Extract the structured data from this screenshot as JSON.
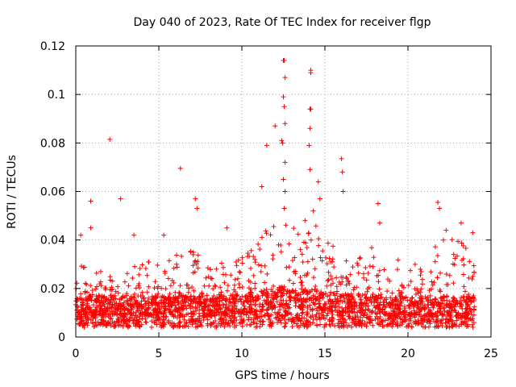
{
  "chart_data": {
    "type": "scatter",
    "title": "Day 040 of 2023, Rate Of TEC Index for receiver flgp",
    "xlabel": "GPS time / hours",
    "ylabel": "ROTI / TECUs",
    "xlim": [
      0,
      25
    ],
    "ylim": [
      0,
      0.12
    ],
    "xticks": [
      0,
      5,
      10,
      15,
      20,
      25
    ],
    "xtick_labels": [
      "0",
      "5",
      "10",
      "15",
      "20",
      "25"
    ],
    "yticks": [
      0,
      0.02,
      0.04,
      0.06,
      0.08,
      0.1,
      0.12
    ],
    "ytick_labels": [
      "0",
      "0.02",
      "0.04",
      "0.06",
      "0.08",
      "0.1",
      "0.12"
    ],
    "grid": true,
    "marker": "+",
    "marker_color": "#ff0000",
    "data_x_range": [
      0,
      24
    ],
    "series": [
      {
        "name": "ROTI",
        "color": "#ff0000",
        "points": [
          [
            0.3,
            0.042
          ],
          [
            0.9,
            0.056
          ],
          [
            0.9,
            0.045
          ],
          [
            2.05,
            0.0815
          ],
          [
            2.7,
            0.057
          ],
          [
            3.5,
            0.042
          ],
          [
            5.3,
            0.042
          ],
          [
            6.3,
            0.0695
          ],
          [
            7.2,
            0.057
          ],
          [
            7.3,
            0.053
          ],
          [
            9.1,
            0.045
          ],
          [
            11.2,
            0.062
          ],
          [
            11.5,
            0.079
          ],
          [
            12.0,
            0.087
          ],
          [
            12.5,
            0.114
          ],
          [
            12.55,
            0.114
          ],
          [
            12.6,
            0.107
          ],
          [
            12.5,
            0.099
          ],
          [
            12.55,
            0.095
          ],
          [
            12.6,
            0.088
          ],
          [
            12.4,
            0.081
          ],
          [
            12.45,
            0.08
          ],
          [
            12.6,
            0.072
          ],
          [
            12.5,
            0.065
          ],
          [
            12.6,
            0.06
          ],
          [
            12.55,
            0.053
          ],
          [
            14.15,
            0.11
          ],
          [
            14.15,
            0.109
          ],
          [
            14.1,
            0.094
          ],
          [
            14.15,
            0.094
          ],
          [
            14.1,
            0.086
          ],
          [
            14.05,
            0.079
          ],
          [
            14.1,
            0.069
          ],
          [
            14.6,
            0.064
          ],
          [
            14.7,
            0.057
          ],
          [
            14.3,
            0.052
          ],
          [
            16.0,
            0.0735
          ],
          [
            16.05,
            0.068
          ],
          [
            16.1,
            0.06
          ],
          [
            18.2,
            0.055
          ],
          [
            18.3,
            0.047
          ],
          [
            21.8,
            0.0555
          ],
          [
            21.9,
            0.053
          ],
          [
            22.3,
            0.044
          ],
          [
            23.2,
            0.047
          ],
          [
            23.9,
            0.043
          ]
        ]
      }
    ],
    "noise_envelope": {
      "hours": [
        0,
        0.5,
        1,
        2,
        3,
        4,
        5,
        6,
        7,
        8,
        9,
        10,
        11,
        11.5,
        12,
        12.5,
        13,
        14,
        15,
        16,
        17,
        18,
        19,
        20,
        21,
        22,
        23,
        24
      ],
      "baseline": [
        0.009,
        0.009,
        0.009,
        0.009,
        0.009,
        0.009,
        0.009,
        0.009,
        0.009,
        0.009,
        0.009,
        0.01,
        0.011,
        0.012,
        0.012,
        0.013,
        0.012,
        0.012,
        0.011,
        0.01,
        0.01,
        0.01,
        0.009,
        0.009,
        0.009,
        0.009,
        0.009,
        0.009
      ],
      "upper": [
        0.032,
        0.03,
        0.028,
        0.026,
        0.028,
        0.032,
        0.03,
        0.034,
        0.036,
        0.032,
        0.03,
        0.034,
        0.04,
        0.05,
        0.045,
        0.06,
        0.045,
        0.05,
        0.042,
        0.034,
        0.032,
        0.038,
        0.034,
        0.03,
        0.032,
        0.042,
        0.042,
        0.035
      ],
      "points_per_hour": 110
    }
  }
}
